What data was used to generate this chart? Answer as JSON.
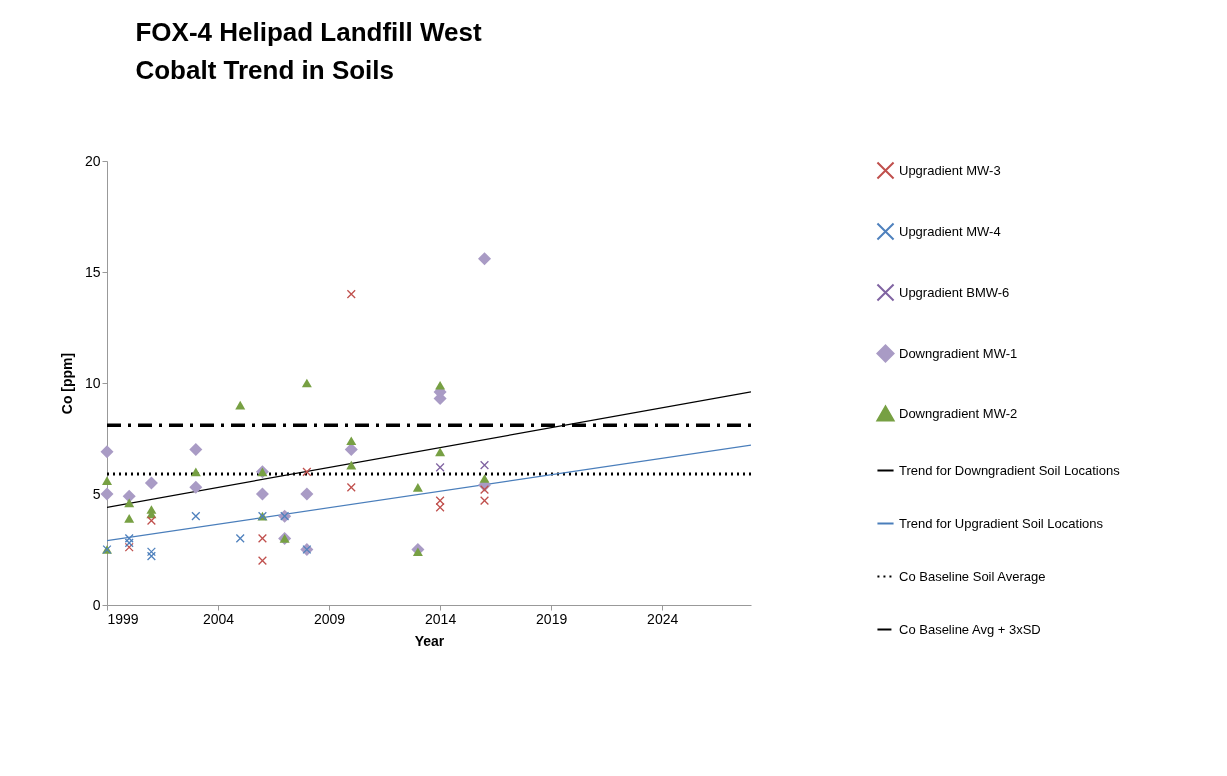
{
  "chart_data": {
    "type": "scatter",
    "title": "FOX-4 Helipad Landfill West\nCobalt Trend in Soils",
    "xlabel": "Year",
    "ylabel": "Co [ppm]",
    "xlim": [
      1999,
      2028
    ],
    "xticks": [
      1999,
      2004,
      2009,
      2014,
      2019,
      2024
    ],
    "ylim": [
      0,
      20
    ],
    "yticks": [
      0,
      5,
      10,
      15,
      20
    ],
    "legend": "right",
    "series": [
      {
        "name": "Upgradient MW-3",
        "color": "#c0504d",
        "marker": "cross",
        "x": [
          2000,
          2001,
          2006,
          2006,
          2008,
          2010,
          2010,
          2014,
          2014,
          2016,
          2016
        ],
        "values": [
          2.6,
          3.8,
          2.0,
          3.0,
          6.0,
          14.0,
          5.3,
          4.4,
          4.7,
          5.2,
          4.7
        ]
      },
      {
        "name": "Upgradient MW-4",
        "color": "#4f81bd",
        "marker": "cross",
        "x": [
          1999,
          2000,
          2000,
          2001,
          2001,
          2003,
          2005,
          2006,
          2007,
          2008
        ],
        "values": [
          2.5,
          3.0,
          2.8,
          2.4,
          2.2,
          4.0,
          3.0,
          4.0,
          4.0,
          2.5
        ]
      },
      {
        "name": "Upgradient BMW-6",
        "color": "#8064a2",
        "marker": "cross",
        "x": [
          2014,
          2016
        ],
        "values": [
          6.2,
          6.3
        ]
      },
      {
        "name": "Downgradient MW-1",
        "color": "#a99bc5",
        "marker": "diamond",
        "x": [
          1999,
          1999,
          2000,
          2001,
          2003,
          2003,
          2006,
          2006,
          2007,
          2007,
          2008,
          2008,
          2010,
          2013,
          2014,
          2014,
          2016,
          2016
        ],
        "values": [
          6.9,
          5.0,
          4.9,
          5.5,
          7.0,
          5.3,
          6.0,
          5.0,
          4.0,
          3.0,
          5.0,
          2.5,
          7.0,
          2.5,
          9.3,
          9.6,
          15.6,
          5.4
        ]
      },
      {
        "name": "Downgradient MW-2",
        "color": "#77a043",
        "marker": "triangle",
        "x": [
          1999,
          1999,
          2000,
          2000,
          2001,
          2001,
          2003,
          2005,
          2006,
          2006,
          2007,
          2008,
          2010,
          2010,
          2013,
          2013,
          2014,
          2014,
          2016
        ],
        "values": [
          5.6,
          2.5,
          4.6,
          3.9,
          4.3,
          4.1,
          6.0,
          9.0,
          6.0,
          4.0,
          3.0,
          10.0,
          7.4,
          6.3,
          5.3,
          2.4,
          9.9,
          6.9,
          5.7
        ]
      },
      {
        "name": "Trend for Downgradient Soil Locations",
        "type": "line",
        "color": "#000000",
        "marker": "none",
        "x": [
          1999,
          2028
        ],
        "values": [
          4.4,
          9.6
        ]
      },
      {
        "name": "Trend for Upgradient Soil Locations",
        "type": "line",
        "color": "#4a7ebb",
        "marker": "none",
        "x": [
          1999,
          2028
        ],
        "values": [
          2.9,
          7.2
        ]
      }
    ],
    "ref_lines": [
      {
        "axis": "y",
        "value": 5.9,
        "label": "Co Baseline Soil Average",
        "color": "#000000",
        "line_style": "dotted"
      },
      {
        "axis": "y",
        "value": 8.1,
        "label": "Co Baseline Avg + 3xSD",
        "color": "#000000",
        "line_style": "dashed"
      }
    ]
  }
}
